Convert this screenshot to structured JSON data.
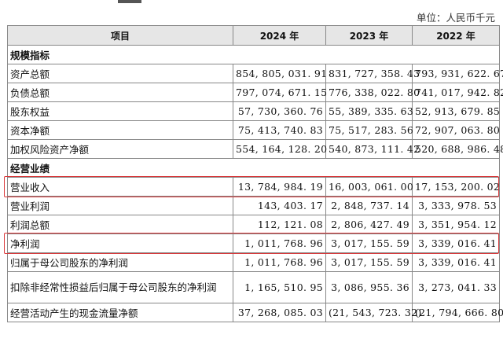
{
  "unit_label": "单位：人民币千元",
  "table": {
    "headers": [
      "项目",
      "2024 年",
      "2023 年",
      "2022 年"
    ],
    "sections": [
      {
        "title": "规模指标",
        "rows": [
          {
            "label": "资产总额",
            "values": [
              "854, 805, 031. 91",
              "831, 727, 358. 43",
              "793, 931, 622. 67"
            ]
          },
          {
            "label": "负债总额",
            "values": [
              "797, 074, 671. 15",
              "776, 338, 022. 80",
              "741, 017, 942. 82"
            ]
          },
          {
            "label": "股东权益",
            "values": [
              "57, 730, 360. 76",
              "55, 389, 335. 63",
              "52, 913, 679. 85"
            ]
          },
          {
            "label": "资本净额",
            "values": [
              "75, 413, 740. 83",
              "75, 517, 283. 56",
              "72, 907, 063. 80"
            ]
          },
          {
            "label": "加权风险资产净额",
            "values": [
              "554, 164, 128. 20",
              "540, 873, 111. 42",
              "520, 688, 986. 48"
            ]
          }
        ]
      },
      {
        "title": "经营业绩",
        "rows": [
          {
            "label": "营业收入",
            "values": [
              "13, 784, 984. 19",
              "16, 003, 061. 00",
              "17, 153, 200. 02"
            ],
            "highlight": true
          },
          {
            "label": "营业利润",
            "values": [
              "143, 403. 17",
              "2, 848, 737. 14",
              "3, 333, 978. 53"
            ]
          },
          {
            "label": "利润总额",
            "values": [
              "112, 121. 08",
              "2, 806, 427. 49",
              "3, 351, 954. 12"
            ]
          },
          {
            "label": "净利润",
            "values": [
              "1, 011, 768. 96",
              "3, 017, 155. 59",
              "3, 339, 016. 41"
            ],
            "highlight": true
          },
          {
            "label": "归属于母公司股东的净利润",
            "values": [
              "1, 011, 768. 96",
              "3, 017, 155. 59",
              "3, 339, 016. 41"
            ]
          },
          {
            "label": "扣除非经常性损益后归属于母公司股东的净利润",
            "values": [
              "1, 165, 510. 95",
              "3, 086, 955. 36",
              "3, 273, 041. 33"
            ],
            "tall": true
          },
          {
            "label": "经营活动产生的现金流量净额",
            "values": [
              "37, 268, 085. 03",
              "(21, 543, 723. 32)",
              "(21, 794, 666. 80)"
            ]
          }
        ]
      }
    ]
  },
  "highlight_color": "#d9383a"
}
